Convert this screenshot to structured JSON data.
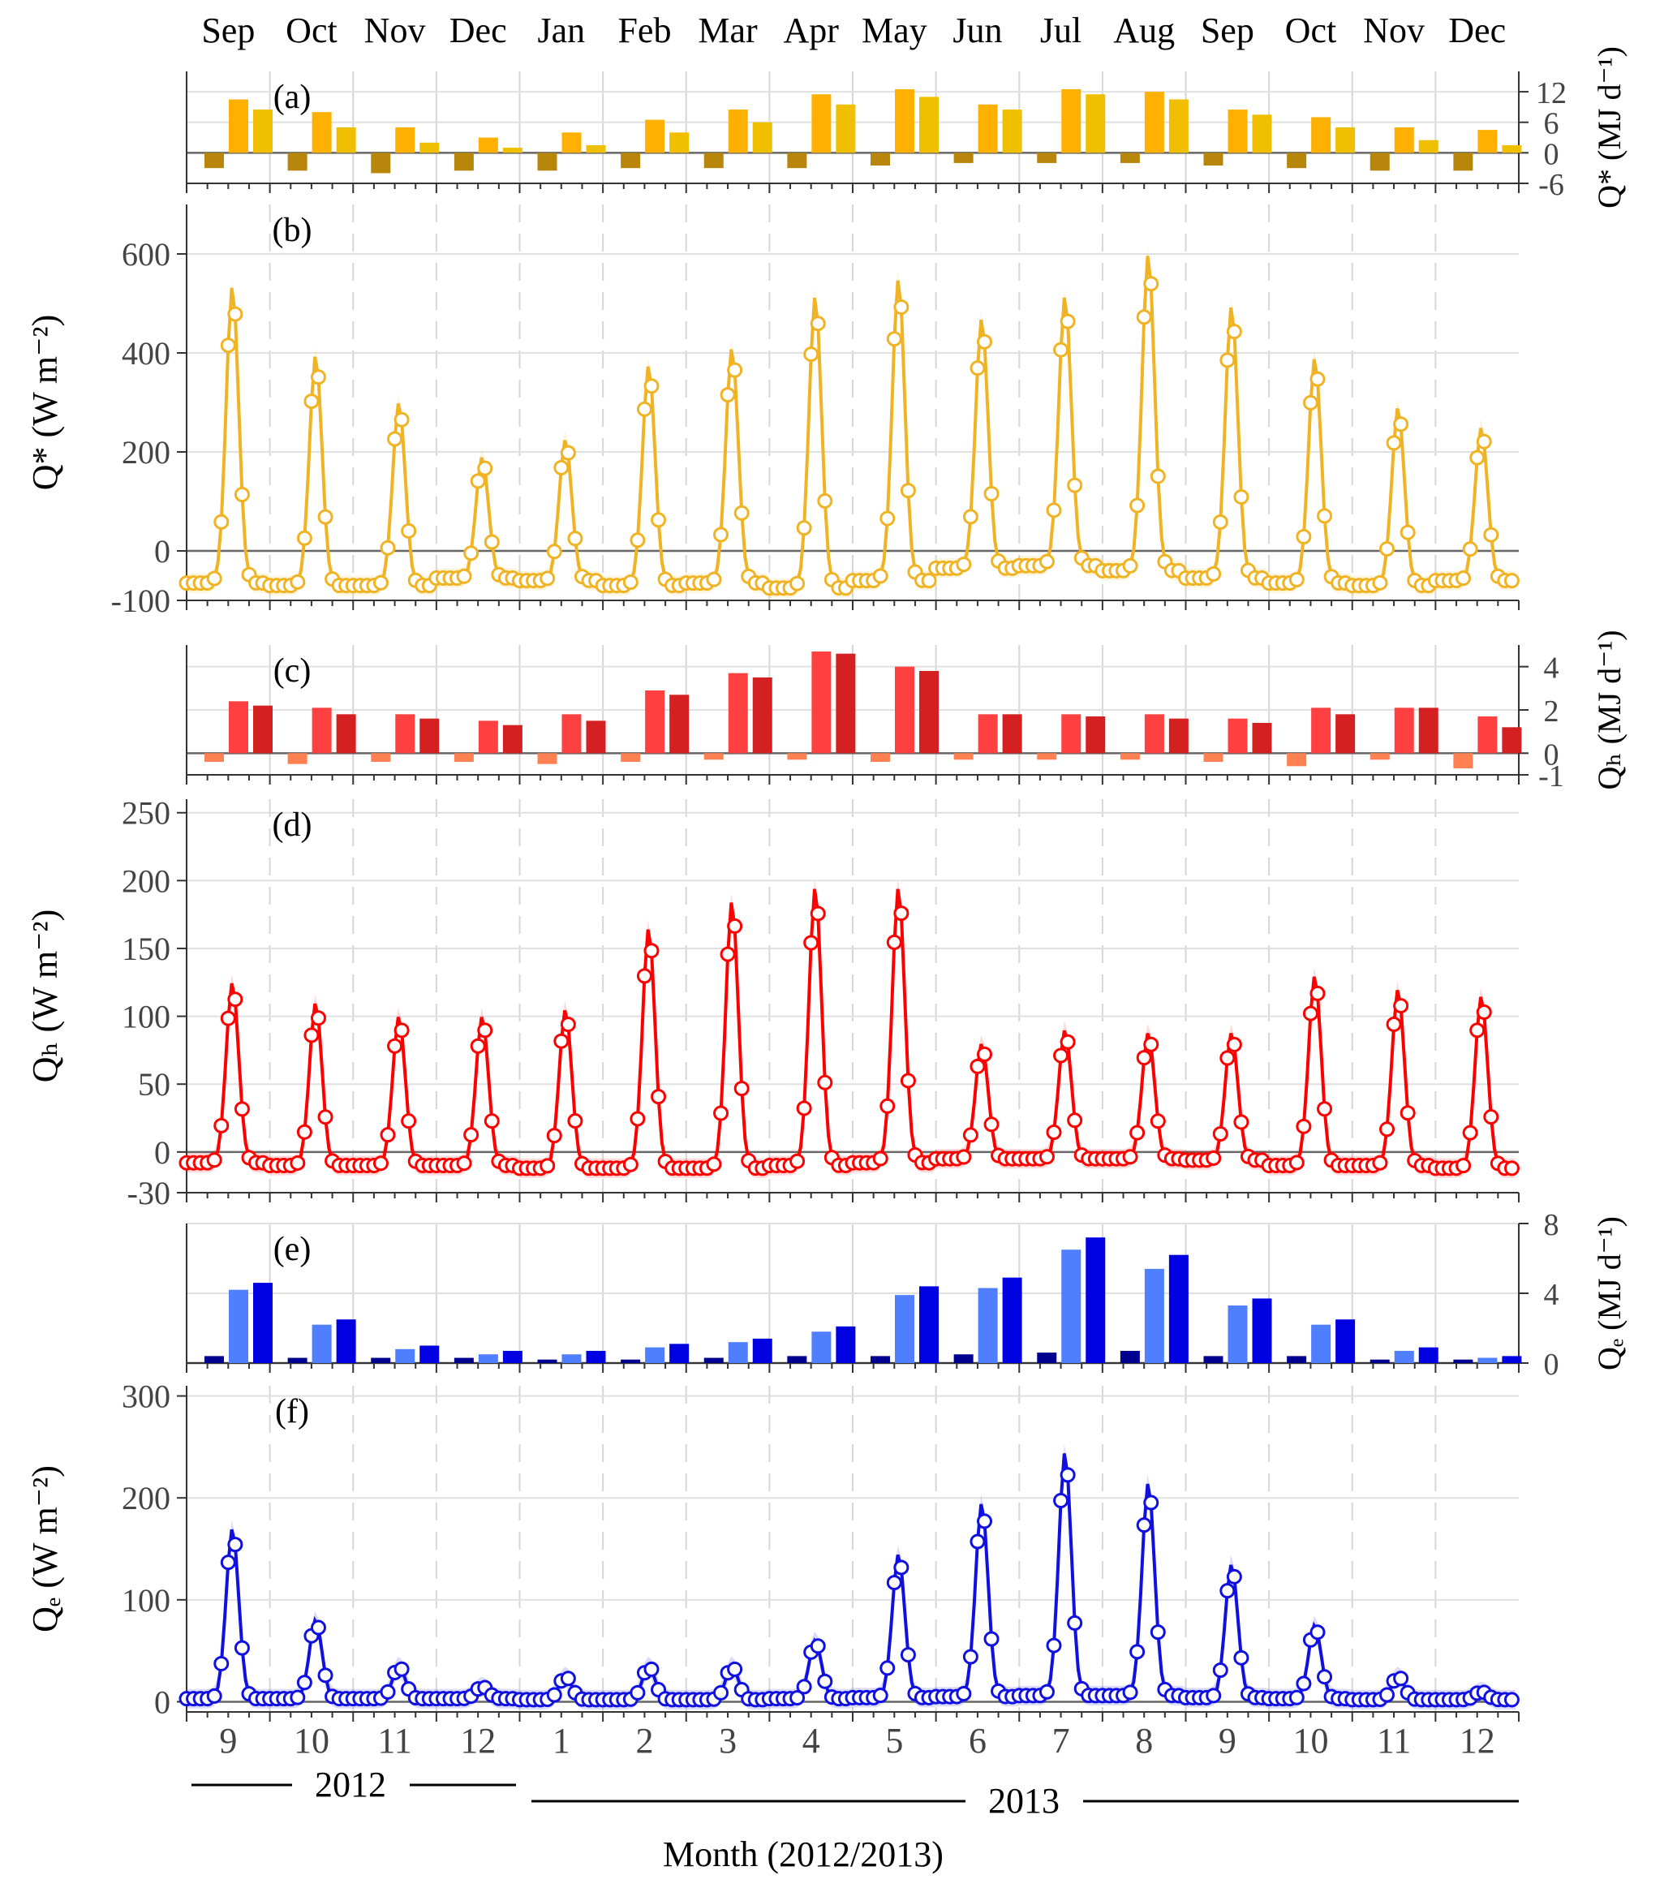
{
  "months_top": [
    "Sep",
    "Oct",
    "Nov",
    "Dec",
    "Jan",
    "Feb",
    "Mar",
    "Apr",
    "May",
    "Jun",
    "Jul",
    "Aug",
    "Sep",
    "Oct",
    "Nov",
    "Dec"
  ],
  "months_bottom": [
    "9",
    "10",
    "11",
    "12",
    "1",
    "2",
    "3",
    "4",
    "5",
    "6",
    "7",
    "8",
    "9",
    "10",
    "11",
    "12"
  ],
  "years": [
    "2012",
    "2013"
  ],
  "xlabel": "Month (2012/2013)",
  "colors": {
    "q_star": "#f0b323",
    "q_h": "#ff0000",
    "q_e": "#1010e0"
  },
  "chart_data": [
    {
      "id": "a",
      "type": "bar",
      "panel_label": "(a)",
      "ylabel": "Q* (MJ d⁻¹)",
      "ylim": [
        -6,
        16
      ],
      "yticks": [
        -6,
        0,
        6,
        12
      ],
      "categories": [
        "Sep",
        "Oct",
        "Nov",
        "Dec",
        "Jan",
        "Feb",
        "Mar",
        "Apr",
        "May",
        "Jun",
        "Jul",
        "Aug",
        "Sep",
        "Oct",
        "Nov",
        "Dec"
      ],
      "series": [
        {
          "values": [
            -3,
            -3.5,
            -4,
            -3.5,
            -3.5,
            -3,
            -3,
            -3,
            -2.5,
            -2,
            -2,
            -2,
            -2.5,
            -3,
            -3.5,
            -3.5
          ],
          "color": "#b8860b"
        },
        {
          "values": [
            10.5,
            8,
            5,
            3,
            4,
            6.5,
            8.5,
            11.5,
            12.5,
            9.5,
            12.5,
            12,
            8.5,
            7,
            5,
            4.5
          ],
          "color": "#ffb000"
        },
        {
          "values": [
            8.5,
            5,
            2,
            1,
            1.5,
            4,
            6,
            9.5,
            11,
            8.5,
            11.5,
            10.5,
            7.5,
            5,
            2.5,
            1.5
          ],
          "color": "#f0c000"
        }
      ]
    },
    {
      "id": "b",
      "type": "line",
      "panel_label": "(b)",
      "ylabel": "Q* (W m⁻²)",
      "ylim": [
        -100,
        700
      ],
      "yticks": [
        -100,
        0,
        200,
        400,
        600
      ],
      "peaks": [
        535,
        395,
        300,
        190,
        225,
        375,
        410,
        515,
        550,
        470,
        515,
        600,
        495,
        390,
        290,
        250
      ],
      "night": [
        -65,
        -70,
        -70,
        -55,
        -60,
        -70,
        -65,
        -75,
        -60,
        -35,
        -30,
        -40,
        -55,
        -65,
        -70,
        -60
      ]
    },
    {
      "id": "c",
      "type": "bar",
      "panel_label": "(c)",
      "ylabel": "Qₕ (MJ d⁻¹)",
      "ylim": [
        -1,
        5
      ],
      "yticks": [
        -1,
        0,
        2,
        4
      ],
      "categories": [
        "Sep",
        "Oct",
        "Nov",
        "Dec",
        "Jan",
        "Feb",
        "Mar",
        "Apr",
        "May",
        "Jun",
        "Jul",
        "Aug",
        "Sep",
        "Oct",
        "Nov",
        "Dec"
      ],
      "series": [
        {
          "values": [
            -0.4,
            -0.5,
            -0.4,
            -0.4,
            -0.5,
            -0.4,
            -0.3,
            -0.3,
            -0.4,
            -0.3,
            -0.3,
            -0.3,
            -0.4,
            -0.6,
            -0.3,
            -0.7
          ],
          "color": "#ff8050"
        },
        {
          "values": [
            2.4,
            2.1,
            1.8,
            1.5,
            1.8,
            2.9,
            3.7,
            4.7,
            4.0,
            1.8,
            1.8,
            1.8,
            1.6,
            2.1,
            2.1,
            1.7
          ],
          "color": "#ff4040"
        },
        {
          "values": [
            2.2,
            1.8,
            1.6,
            1.3,
            1.5,
            2.7,
            3.5,
            4.6,
            3.8,
            1.8,
            1.7,
            1.6,
            1.4,
            1.8,
            2.1,
            1.2
          ],
          "color": "#d42020"
        }
      ]
    },
    {
      "id": "d",
      "type": "line",
      "panel_label": "(d)",
      "ylabel": "Qₕ (W m⁻²)",
      "ylim": [
        -30,
        260
      ],
      "yticks": [
        -30,
        0,
        50,
        100,
        150,
        200,
        250
      ],
      "peaks": [
        125,
        110,
        100,
        100,
        105,
        165,
        185,
        195,
        195,
        80,
        90,
        88,
        88,
        130,
        120,
        115
      ],
      "night": [
        -8,
        -10,
        -10,
        -10,
        -12,
        -12,
        -12,
        -10,
        -8,
        -5,
        -5,
        -5,
        -6,
        -10,
        -10,
        -12
      ]
    },
    {
      "id": "e",
      "type": "bar",
      "panel_label": "(e)",
      "ylabel": "Qₑ (MJ d⁻¹)",
      "ylim": [
        0,
        8
      ],
      "yticks": [
        0,
        4,
        8
      ],
      "categories": [
        "Sep",
        "Oct",
        "Nov",
        "Dec",
        "Jan",
        "Feb",
        "Mar",
        "Apr",
        "May",
        "Jun",
        "Jul",
        "Aug",
        "Sep",
        "Oct",
        "Nov",
        "Dec"
      ],
      "series": [
        {
          "values": [
            0.4,
            0.3,
            0.3,
            0.3,
            0.2,
            0.2,
            0.3,
            0.4,
            0.4,
            0.5,
            0.6,
            0.7,
            0.4,
            0.4,
            0.2,
            0.2
          ],
          "color": "#000090"
        },
        {
          "values": [
            4.2,
            2.2,
            0.8,
            0.5,
            0.5,
            0.9,
            1.2,
            1.8,
            3.9,
            4.3,
            6.5,
            5.4,
            3.3,
            2.2,
            0.7,
            0.3
          ],
          "color": "#4f7fff"
        },
        {
          "values": [
            4.6,
            2.5,
            1.0,
            0.7,
            0.7,
            1.1,
            1.4,
            2.1,
            4.4,
            4.9,
            7.2,
            6.2,
            3.7,
            2.5,
            0.9,
            0.4
          ],
          "color": "#0000e0"
        }
      ]
    },
    {
      "id": "f",
      "type": "line",
      "panel_label": "(f)",
      "ylabel": "Qₑ (W m⁻²)",
      "ylim": [
        -10,
        310
      ],
      "yticks": [
        0,
        100,
        200,
        300
      ],
      "peaks": [
        170,
        80,
        35,
        15,
        25,
        35,
        35,
        60,
        145,
        195,
        245,
        215,
        135,
        75,
        25,
        10
      ],
      "night": [
        3,
        3,
        3,
        3,
        2,
        2,
        2,
        3,
        4,
        5,
        6,
        6,
        4,
        3,
        2,
        2
      ]
    }
  ]
}
